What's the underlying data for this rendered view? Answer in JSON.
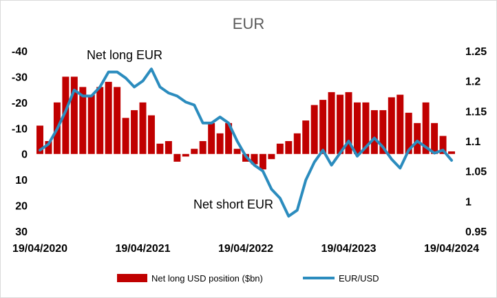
{
  "chart_data": {
    "type": "bar+line",
    "title": "EUR",
    "x_tick_labels": [
      "19/04/2020",
      "19/04/2021",
      "19/04/2022",
      "19/04/2023",
      "19/04/2024"
    ],
    "y_left": {
      "ticks": [
        -40,
        -30,
        -20,
        -10,
        0,
        10,
        20,
        30
      ],
      "tick_labels": [
        "-40",
        "-30",
        "-20",
        "-10",
        "0",
        "10",
        "20",
        "30"
      ],
      "range": [
        -40,
        30
      ],
      "inverted": true
    },
    "y_right": {
      "ticks": [
        1.25,
        1.2,
        1.15,
        1.1,
        1.05,
        1,
        0.95
      ],
      "tick_labels": [
        "1.25",
        "1.2",
        "1.15",
        "1.1",
        "1.05",
        "1",
        "0.95"
      ],
      "range": [
        0.95,
        1.25
      ]
    },
    "annotations": [
      "Net long EUR",
      "Net short EUR"
    ],
    "legend": {
      "placement": "bottom"
    },
    "series": [
      {
        "name": "Net long USD position ($bn)",
        "kind": "bar",
        "axis": "left",
        "color": "#c00000",
        "x": [
          "2020-04",
          "2020-05",
          "2020-06",
          "2020-07",
          "2020-08",
          "2020-09",
          "2020-10",
          "2020-11",
          "2020-12",
          "2021-01",
          "2021-02",
          "2021-03",
          "2021-04",
          "2021-05",
          "2021-06",
          "2021-07",
          "2021-08",
          "2021-09",
          "2021-10",
          "2021-11",
          "2021-12",
          "2022-01",
          "2022-02",
          "2022-03",
          "2022-04",
          "2022-05",
          "2022-06",
          "2022-07",
          "2022-08",
          "2022-09",
          "2022-10",
          "2022-11",
          "2022-12",
          "2023-01",
          "2023-02",
          "2023-03",
          "2023-04",
          "2023-05",
          "2023-06",
          "2023-07",
          "2023-08",
          "2023-09",
          "2023-10",
          "2023-11",
          "2023-12",
          "2024-01",
          "2024-02",
          "2024-03",
          "2024-04"
        ],
        "values": [
          -11,
          -5,
          -20,
          -30,
          -30,
          -26,
          -23,
          -26,
          -28,
          -26,
          -14,
          -17,
          -20,
          -15,
          -4,
          -5,
          3,
          1,
          -2,
          -5,
          -12,
          -8,
          -12,
          -2,
          3,
          4,
          6,
          2,
          -4,
          -5,
          -8,
          -13,
          -19,
          -21,
          -24,
          -23,
          -24,
          -20,
          -20,
          -17,
          -17,
          -22,
          -23,
          -16,
          -12,
          -20,
          -12,
          -7,
          -1
        ]
      },
      {
        "name": "EUR/USD",
        "kind": "line",
        "axis": "right",
        "color": "#2b8cbe",
        "x": [
          "2020-04",
          "2020-05",
          "2020-06",
          "2020-07",
          "2020-08",
          "2020-09",
          "2020-10",
          "2020-11",
          "2020-12",
          "2021-01",
          "2021-02",
          "2021-03",
          "2021-04",
          "2021-05",
          "2021-06",
          "2021-07",
          "2021-08",
          "2021-09",
          "2021-10",
          "2021-11",
          "2021-12",
          "2022-01",
          "2022-02",
          "2022-03",
          "2022-04",
          "2022-05",
          "2022-06",
          "2022-07",
          "2022-08",
          "2022-09",
          "2022-10",
          "2022-11",
          "2022-12",
          "2023-01",
          "2023-02",
          "2023-03",
          "2023-04",
          "2023-05",
          "2023-06",
          "2023-07",
          "2023-08",
          "2023-09",
          "2023-10",
          "2023-11",
          "2023-12",
          "2024-01",
          "2024-02",
          "2024-03",
          "2024-04"
        ],
        "values": [
          1.085,
          1.095,
          1.12,
          1.15,
          1.185,
          1.175,
          1.175,
          1.19,
          1.215,
          1.215,
          1.205,
          1.19,
          1.2,
          1.22,
          1.19,
          1.18,
          1.175,
          1.165,
          1.16,
          1.13,
          1.13,
          1.14,
          1.13,
          1.1,
          1.075,
          1.06,
          1.05,
          1.02,
          1.005,
          0.975,
          0.985,
          1.035,
          1.065,
          1.085,
          1.06,
          1.08,
          1.1,
          1.075,
          1.09,
          1.105,
          1.09,
          1.07,
          1.055,
          1.085,
          1.1,
          1.09,
          1.08,
          1.085,
          1.068
        ]
      }
    ]
  }
}
